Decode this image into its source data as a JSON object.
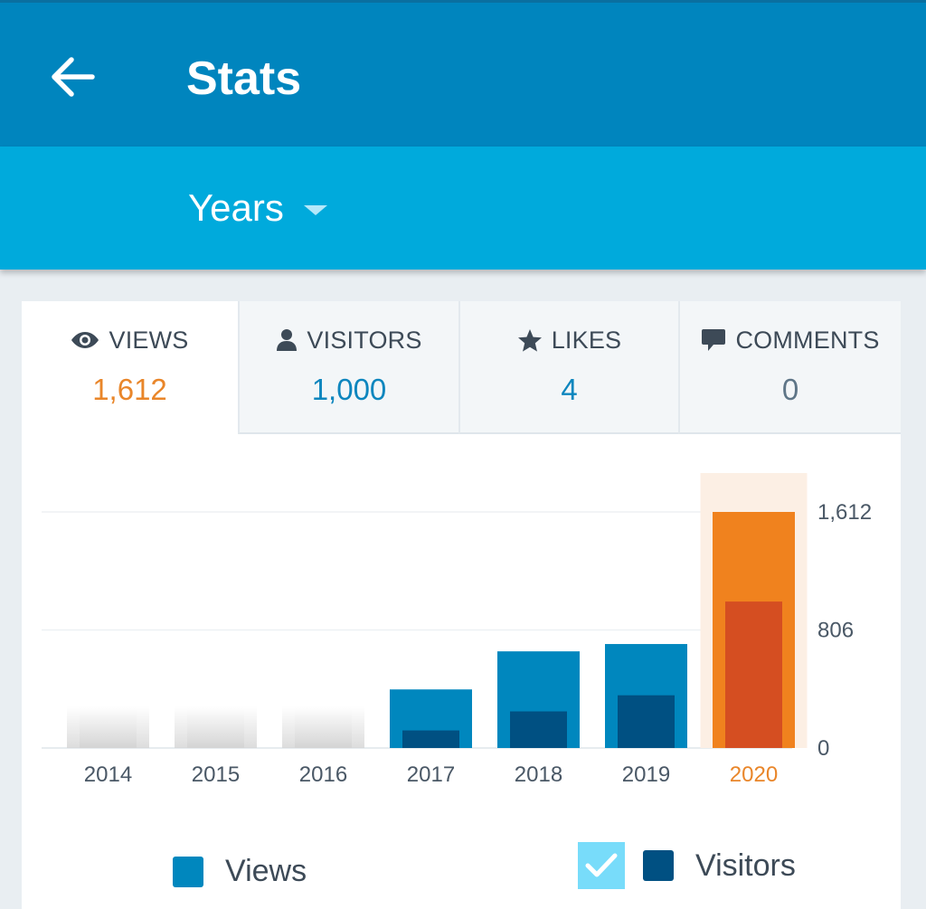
{
  "header": {
    "title": "Stats",
    "back_icon": "arrow-left-icon",
    "background": "#0085be"
  },
  "period": {
    "label": "Years",
    "icon": "caret-down-icon",
    "background": "#00aadc"
  },
  "tabs": [
    {
      "label": "VIEWS",
      "value": "1,612",
      "icon": "eye-icon",
      "active": true,
      "value_color": "#e9862a"
    },
    {
      "label": "VISITORS",
      "value": "1,000",
      "icon": "person-icon",
      "active": false,
      "value_color": "#0e86be"
    },
    {
      "label": "LIKES",
      "value": "4",
      "icon": "star-icon",
      "active": false,
      "value_color": "#0e86be"
    },
    {
      "label": "COMMENTS",
      "value": "0",
      "icon": "comment-icon",
      "active": false,
      "value_color": "#5e7587"
    }
  ],
  "chart_data": {
    "type": "bar",
    "categories": [
      "2014",
      "2015",
      "2016",
      "2017",
      "2018",
      "2019",
      "2020"
    ],
    "series": [
      {
        "name": "Views",
        "values": [
          0,
          0,
          0,
          400,
          660,
          710,
          1612
        ],
        "color": "#0087be"
      },
      {
        "name": "Visitors",
        "values": [
          0,
          0,
          0,
          120,
          250,
          360,
          1000
        ],
        "color": "#005082"
      }
    ],
    "highlighted_category": "2020",
    "highlight_colors": {
      "views": "#f0821e",
      "visitors": "#d54e21",
      "band": "#fcefe4",
      "label": "#e9862a"
    },
    "y_ticks": [
      "1,612",
      "806",
      "0"
    ],
    "ylim": [
      0,
      1612
    ],
    "grid": true
  },
  "legend": {
    "views_label": "Views",
    "visitors_label": "Visitors",
    "visitors_checked": true,
    "check_icon": "check-icon"
  }
}
